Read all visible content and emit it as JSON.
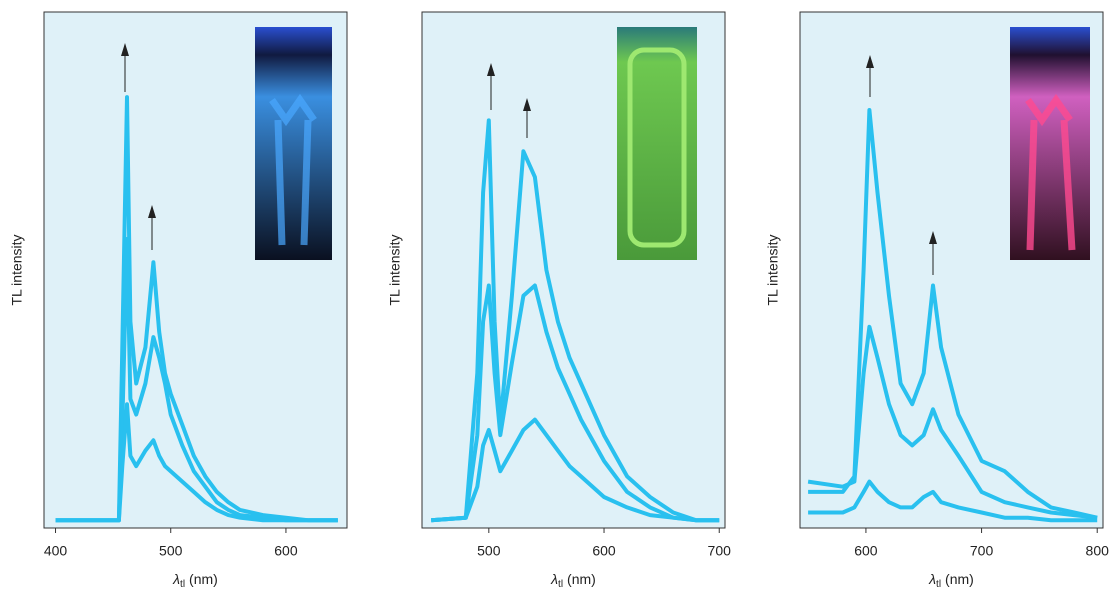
{
  "chart_data": [
    {
      "type": "line",
      "ylabel": "TL intensity",
      "xlabel": {
        "symbol": "λ",
        "subscript": "tl",
        "unit": "(nm)"
      },
      "xlim": [
        390,
        653
      ],
      "xticks": [
        400,
        500,
        600
      ],
      "ylim": [
        0,
        100
      ],
      "x": [
        400,
        455,
        458,
        462,
        465,
        470,
        478,
        485,
        490,
        495,
        500,
        510,
        520,
        530,
        540,
        550,
        560,
        580,
        600,
        620,
        645
      ],
      "series": [
        {
          "color": "#29c0ef",
          "values": [
            1.5,
            1.5,
            35,
            83.5,
            40,
            28,
            35,
            51.5,
            38,
            30,
            26,
            20,
            14,
            10,
            7,
            5,
            3.5,
            2.5,
            2,
            1.5,
            1.5
          ]
        },
        {
          "color": "#29c0ef",
          "values": [
            1.5,
            1.5,
            20,
            56,
            25,
            22,
            28,
            37,
            33,
            28,
            22,
            16,
            11,
            8,
            5,
            3.5,
            2.5,
            2,
            1.5,
            1.5,
            1.5
          ]
        },
        {
          "color": "#29c0ef",
          "values": [
            1.5,
            1.5,
            12,
            24,
            14,
            12,
            15,
            17,
            14,
            12,
            11,
            9,
            7,
            5,
            3.5,
            2.5,
            2,
            1.5,
            1.5,
            1.5,
            1.5
          ]
        }
      ]
    },
    {
      "type": "line",
      "ylabel": "TL intensity",
      "xlabel": {
        "symbol": "λ",
        "subscript": "tl",
        "unit": "(nm)"
      },
      "xlim": [
        442,
        705
      ],
      "xticks": [
        500,
        600,
        700
      ],
      "ylim": [
        0,
        100
      ],
      "x": [
        450,
        480,
        490,
        495,
        500,
        505,
        510,
        520,
        530,
        540,
        550,
        560,
        570,
        580,
        600,
        620,
        640,
        660,
        680,
        700
      ],
      "series": [
        {
          "color": "#29c0ef",
          "values": [
            1.5,
            2,
            30,
            65,
            79,
            40,
            20,
            45,
            73,
            68,
            50,
            40,
            33,
            28,
            18,
            10,
            6,
            3,
            1.5,
            1.5
          ]
        },
        {
          "color": "#29c0ef",
          "values": [
            1.5,
            2,
            18,
            40,
            47,
            30,
            18,
            32,
            45,
            47,
            38,
            31,
            26,
            21,
            13,
            7,
            4,
            2,
            1.5,
            1.5
          ]
        },
        {
          "color": "#29c0ef",
          "values": [
            1.5,
            2,
            8,
            16,
            19,
            15,
            11,
            15,
            19,
            21,
            18,
            15,
            12,
            10,
            6,
            4,
            2.5,
            2,
            1.5,
            1.5
          ]
        }
      ]
    },
    {
      "type": "line",
      "ylabel": "TL intensity",
      "xlabel": {
        "symbol": "λ",
        "subscript": "tl",
        "unit": "(nm)"
      },
      "xlim": [
        543,
        805
      ],
      "xticks": [
        600,
        700,
        800
      ],
      "ylim": [
        0,
        100
      ],
      "x": [
        550,
        580,
        590,
        598,
        603,
        610,
        620,
        630,
        640,
        650,
        658,
        665,
        680,
        700,
        720,
        740,
        760,
        780,
        800
      ],
      "series": [
        {
          "color": "#29c0ef",
          "values": [
            7,
            7,
            10,
            50,
            81,
            65,
            45,
            28,
            24,
            30,
            47,
            35,
            22,
            13,
            11,
            7,
            4,
            3,
            2
          ]
        },
        {
          "color": "#29c0ef",
          "values": [
            9,
            8,
            9,
            30,
            39,
            33,
            24,
            18,
            16,
            18,
            23,
            19,
            14,
            7,
            5,
            4,
            3,
            2.5,
            2
          ]
        },
        {
          "color": "#29c0ef",
          "values": [
            3,
            3,
            4,
            7,
            9,
            7,
            5,
            4,
            4,
            6,
            7,
            5,
            4,
            3,
            2,
            2,
            1.5,
            1.5,
            1.5
          ]
        }
      ]
    }
  ]
}
